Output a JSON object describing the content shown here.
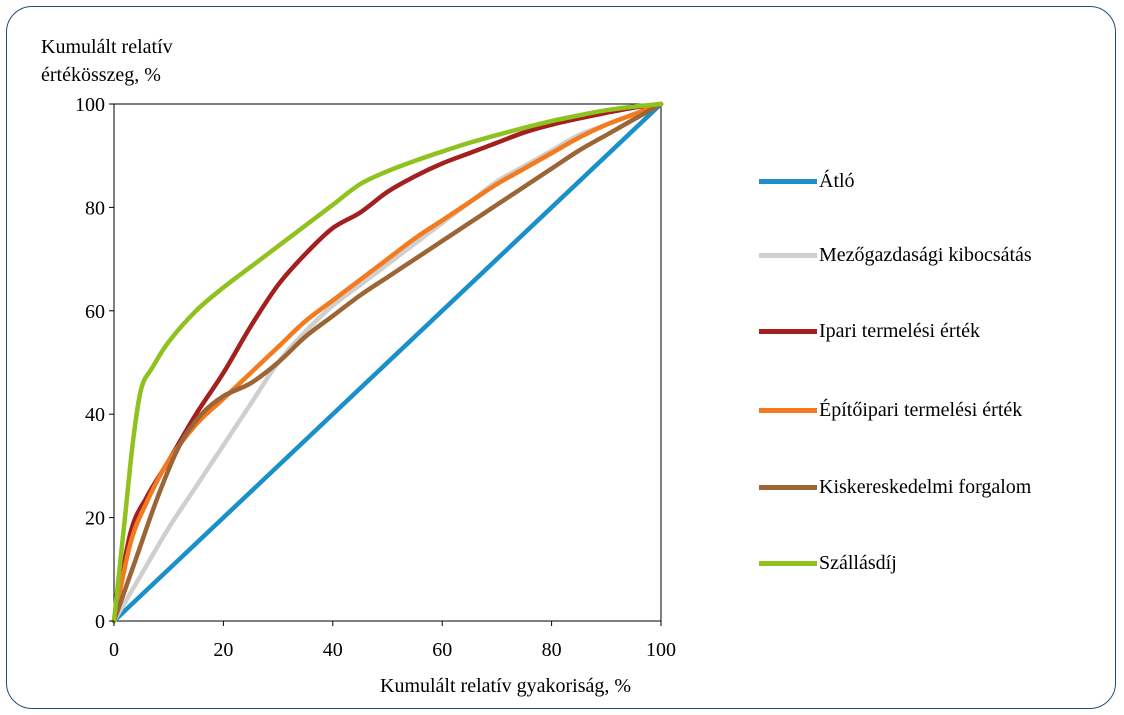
{
  "chart_data": {
    "type": "line",
    "xlabel": "Kumulált relatív gyakoriság, %",
    "ylabel": "Kumulált relatív értékösszeg, %",
    "ylabel_lines": [
      "Kumulált relatív",
      "értékösszeg, %"
    ],
    "xlim": [
      0,
      100
    ],
    "ylim": [
      0,
      100
    ],
    "xticks": [
      "0",
      "20",
      "40",
      "60",
      "80",
      "100"
    ],
    "yticks": [
      "0",
      "20",
      "40",
      "60",
      "80",
      "100"
    ],
    "grid": false,
    "legend_position": "right",
    "series": [
      {
        "name": "Átló",
        "color": "#1a8fc9",
        "points": [
          [
            0,
            0
          ],
          [
            100,
            100
          ]
        ]
      },
      {
        "name": "Mezőgazdasági kibocsátás",
        "color": "#cfcfcf",
        "points": [
          [
            0,
            0
          ],
          [
            5,
            9
          ],
          [
            10,
            18
          ],
          [
            15,
            26
          ],
          [
            20,
            34
          ],
          [
            25,
            42
          ],
          [
            30,
            50
          ],
          [
            35,
            56
          ],
          [
            40,
            61
          ],
          [
            45,
            65
          ],
          [
            50,
            69
          ],
          [
            55,
            73
          ],
          [
            60,
            77
          ],
          [
            65,
            81
          ],
          [
            70,
            85
          ],
          [
            75,
            88
          ],
          [
            80,
            91
          ],
          [
            85,
            94
          ],
          [
            90,
            96
          ],
          [
            95,
            98
          ],
          [
            100,
            100
          ]
        ]
      },
      {
        "name": "Ipari termelési érték",
        "color": "#a3201f",
        "points": [
          [
            0,
            0
          ],
          [
            3,
            17
          ],
          [
            6,
            24
          ],
          [
            10,
            31
          ],
          [
            15,
            40
          ],
          [
            20,
            48
          ],
          [
            25,
            57
          ],
          [
            30,
            65
          ],
          [
            35,
            71
          ],
          [
            40,
            76
          ],
          [
            45,
            79
          ],
          [
            50,
            83
          ],
          [
            55,
            86
          ],
          [
            60,
            88.5
          ],
          [
            65,
            90.5
          ],
          [
            70,
            92.5
          ],
          [
            75,
            94.5
          ],
          [
            80,
            96
          ],
          [
            85,
            97.2
          ],
          [
            90,
            98.3
          ],
          [
            95,
            99.3
          ],
          [
            100,
            100
          ]
        ]
      },
      {
        "name": "Építőipari termelési érték",
        "color": "#f47a1f",
        "points": [
          [
            0,
            0
          ],
          [
            3,
            15
          ],
          [
            6,
            23
          ],
          [
            10,
            31
          ],
          [
            15,
            38
          ],
          [
            20,
            43
          ],
          [
            25,
            48
          ],
          [
            30,
            53
          ],
          [
            35,
            58
          ],
          [
            40,
            62
          ],
          [
            45,
            66
          ],
          [
            50,
            70
          ],
          [
            55,
            74
          ],
          [
            60,
            77.5
          ],
          [
            65,
            81
          ],
          [
            70,
            84.5
          ],
          [
            75,
            87.5
          ],
          [
            80,
            90.5
          ],
          [
            85,
            93.5
          ],
          [
            90,
            96
          ],
          [
            95,
            98
          ],
          [
            100,
            100
          ]
        ]
      },
      {
        "name": "Kiskereskedelmi forgalom",
        "color": "#9c6535",
        "points": [
          [
            0,
            0
          ],
          [
            4,
            12
          ],
          [
            8,
            24
          ],
          [
            12,
            34
          ],
          [
            16,
            40
          ],
          [
            20,
            43.5
          ],
          [
            25,
            46
          ],
          [
            30,
            50
          ],
          [
            35,
            55
          ],
          [
            40,
            59
          ],
          [
            45,
            63
          ],
          [
            50,
            66.5
          ],
          [
            55,
            70
          ],
          [
            60,
            73.5
          ],
          [
            65,
            77
          ],
          [
            70,
            80.5
          ],
          [
            75,
            84
          ],
          [
            80,
            87.5
          ],
          [
            85,
            91
          ],
          [
            90,
            94
          ],
          [
            95,
            97
          ],
          [
            100,
            100
          ]
        ]
      },
      {
        "name": "Szállásdíj",
        "color": "#8fc21e",
        "points": [
          [
            0,
            0
          ],
          [
            2,
            20
          ],
          [
            3.5,
            35
          ],
          [
            5,
            45
          ],
          [
            7,
            49
          ],
          [
            10,
            54
          ],
          [
            15,
            60
          ],
          [
            20,
            64.5
          ],
          [
            25,
            68.5
          ],
          [
            30,
            72.5
          ],
          [
            35,
            76.5
          ],
          [
            40,
            80.5
          ],
          [
            45,
            84.5
          ],
          [
            50,
            87
          ],
          [
            55,
            89
          ],
          [
            60,
            90.8
          ],
          [
            65,
            92.5
          ],
          [
            70,
            94
          ],
          [
            75,
            95.4
          ],
          [
            80,
            96.7
          ],
          [
            85,
            97.8
          ],
          [
            90,
            98.8
          ],
          [
            95,
            99.5
          ],
          [
            100,
            100
          ]
        ]
      }
    ]
  }
}
